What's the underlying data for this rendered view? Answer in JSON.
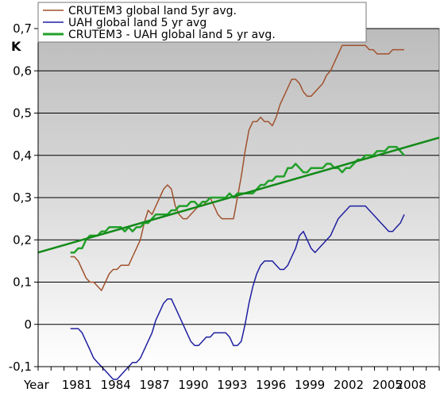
{
  "chart_data": {
    "type": "line",
    "title": "",
    "xlabel": "Year",
    "ylabel": "K",
    "xlim": [
      1978.0,
      2009.0
    ],
    "ylim": [
      -0.1,
      0.7
    ],
    "y_ticks": [
      {
        "value": -0.1,
        "label": "-0,1"
      },
      {
        "value": 0,
        "label": "0"
      },
      {
        "value": 0.1,
        "label": "0,1"
      },
      {
        "value": 0.2,
        "label": "0,2"
      },
      {
        "value": 0.3,
        "label": "0,3"
      },
      {
        "value": 0.4,
        "label": "0,4"
      },
      {
        "value": 0.5,
        "label": "0,5"
      },
      {
        "value": 0.6,
        "label": "0,6"
      },
      {
        "value": 0.7,
        "label": "0,7"
      }
    ],
    "x_tick_labels": [
      {
        "value": 1978.0,
        "label": "Year"
      },
      {
        "value": 1981.0,
        "label": "1981"
      },
      {
        "value": 1984.0,
        "label": "1984"
      },
      {
        "value": 1987.0,
        "label": "1987"
      },
      {
        "value": 1990.0,
        "label": "1990"
      },
      {
        "value": 1993.0,
        "label": "1993"
      },
      {
        "value": 1996.0,
        "label": "1996"
      },
      {
        "value": 1999.0,
        "label": "1999"
      },
      {
        "value": 2002.0,
        "label": "2002"
      },
      {
        "value": 2005.0,
        "label": "2005"
      },
      {
        "value": 2008.0,
        "label": "2008"
      }
    ],
    "grid": true,
    "background": "vertical gradient gray to white",
    "legend_position": "top-left",
    "series": [
      {
        "name": "CRUTEM3 global land 5yr avg.",
        "color": "#a0522d",
        "x": [
          1980.5,
          1980.8,
          1981.1,
          1981.4,
          1981.7,
          1982.0,
          1982.3,
          1982.6,
          1982.9,
          1983.2,
          1983.5,
          1983.8,
          1984.1,
          1984.4,
          1984.7,
          1985.0,
          1985.3,
          1985.6,
          1985.9,
          1986.2,
          1986.5,
          1986.8,
          1987.1,
          1987.4,
          1987.7,
          1988.0,
          1988.3,
          1988.6,
          1988.9,
          1989.2,
          1989.5,
          1989.8,
          1990.1,
          1990.4,
          1990.7,
          1991.0,
          1991.3,
          1991.6,
          1991.9,
          1992.2,
          1992.5,
          1992.8,
          1993.1,
          1993.4,
          1993.7,
          1994.0,
          1994.3,
          1994.6,
          1994.9,
          1995.2,
          1995.5,
          1995.8,
          1996.1,
          1996.4,
          1996.7,
          1997.0,
          1997.3,
          1997.6,
          1997.9,
          1998.2,
          1998.5,
          1998.8,
          1999.1,
          1999.4,
          1999.7,
          2000.0,
          2000.3,
          2000.6,
          2000.9,
          2001.2,
          2001.5,
          2001.8,
          2002.1,
          2002.4,
          2002.7,
          2003.0,
          2003.3,
          2003.6,
          2003.9,
          2004.2,
          2004.5,
          2004.8,
          2005.1,
          2005.4,
          2005.7,
          2006.0,
          2006.3
        ],
        "values": [
          0.16,
          0.16,
          0.15,
          0.13,
          0.11,
          0.1,
          0.1,
          0.09,
          0.08,
          0.1,
          0.12,
          0.13,
          0.13,
          0.14,
          0.14,
          0.14,
          0.16,
          0.18,
          0.2,
          0.24,
          0.27,
          0.26,
          0.28,
          0.3,
          0.32,
          0.33,
          0.32,
          0.28,
          0.26,
          0.25,
          0.25,
          0.26,
          0.27,
          0.28,
          0.28,
          0.29,
          0.3,
          0.28,
          0.26,
          0.25,
          0.25,
          0.25,
          0.25,
          0.3,
          0.35,
          0.41,
          0.46,
          0.48,
          0.48,
          0.49,
          0.48,
          0.48,
          0.47,
          0.49,
          0.52,
          0.54,
          0.56,
          0.58,
          0.58,
          0.57,
          0.55,
          0.54,
          0.54,
          0.55,
          0.56,
          0.57,
          0.59,
          0.6,
          0.62,
          0.64,
          0.66,
          0.66,
          0.66,
          0.66,
          0.66,
          0.66,
          0.66,
          0.65,
          0.65,
          0.64,
          0.64,
          0.64,
          0.64,
          0.65,
          0.65,
          0.65,
          0.65
        ]
      },
      {
        "name": "UAH global land 5 yr avg",
        "color": "#1f1fa0",
        "x": [
          1980.5,
          1980.8,
          1981.1,
          1981.4,
          1981.7,
          1982.0,
          1982.3,
          1982.6,
          1982.9,
          1983.2,
          1983.5,
          1983.8,
          1984.1,
          1984.4,
          1984.7,
          1985.0,
          1985.3,
          1985.6,
          1985.9,
          1986.2,
          1986.5,
          1986.8,
          1987.1,
          1987.4,
          1987.7,
          1988.0,
          1988.3,
          1988.6,
          1988.9,
          1989.2,
          1989.5,
          1989.8,
          1990.1,
          1990.4,
          1990.7,
          1991.0,
          1991.3,
          1991.6,
          1991.9,
          1992.2,
          1992.5,
          1992.8,
          1993.1,
          1993.4,
          1993.7,
          1994.0,
          1994.3,
          1994.6,
          1994.9,
          1995.2,
          1995.5,
          1995.8,
          1996.1,
          1996.4,
          1996.7,
          1997.0,
          1997.3,
          1997.6,
          1997.9,
          1998.2,
          1998.5,
          1998.8,
          1999.1,
          1999.4,
          1999.7,
          2000.0,
          2000.3,
          2000.6,
          2000.9,
          2001.2,
          2001.5,
          2001.8,
          2002.1,
          2002.4,
          2002.7,
          2003.0,
          2003.3,
          2003.6,
          2003.9,
          2004.2,
          2004.5,
          2004.8,
          2005.1,
          2005.4,
          2005.7,
          2006.0,
          2006.3
        ],
        "values": [
          -0.01,
          -0.01,
          -0.01,
          -0.02,
          -0.04,
          -0.06,
          -0.08,
          -0.09,
          -0.1,
          -0.11,
          -0.12,
          -0.13,
          -0.13,
          -0.12,
          -0.11,
          -0.1,
          -0.09,
          -0.09,
          -0.08,
          -0.06,
          -0.04,
          -0.02,
          0.01,
          0.03,
          0.05,
          0.06,
          0.06,
          0.04,
          0.02,
          0.0,
          -0.02,
          -0.04,
          -0.05,
          -0.05,
          -0.04,
          -0.03,
          -0.03,
          -0.02,
          -0.02,
          -0.02,
          -0.02,
          -0.03,
          -0.05,
          -0.05,
          -0.04,
          0.0,
          0.05,
          0.09,
          0.12,
          0.14,
          0.15,
          0.15,
          0.15,
          0.14,
          0.13,
          0.13,
          0.14,
          0.16,
          0.18,
          0.21,
          0.22,
          0.2,
          0.18,
          0.17,
          0.18,
          0.19,
          0.2,
          0.21,
          0.23,
          0.25,
          0.26,
          0.27,
          0.28,
          0.28,
          0.28,
          0.28,
          0.28,
          0.27,
          0.26,
          0.25,
          0.24,
          0.23,
          0.22,
          0.22,
          0.23,
          0.24,
          0.26
        ]
      },
      {
        "name": "CRUTEM3 - UAH global land 5 yr avg.",
        "color": "#22a02a",
        "x": [
          1980.5,
          1980.8,
          1981.1,
          1981.4,
          1981.7,
          1982.0,
          1982.3,
          1982.6,
          1982.9,
          1983.2,
          1983.5,
          1983.8,
          1984.1,
          1984.4,
          1984.7,
          1985.0,
          1985.3,
          1985.6,
          1985.9,
          1986.2,
          1986.5,
          1986.8,
          1987.1,
          1987.4,
          1987.7,
          1988.0,
          1988.3,
          1988.6,
          1988.9,
          1989.2,
          1989.5,
          1989.8,
          1990.1,
          1990.4,
          1990.7,
          1991.0,
          1991.3,
          1991.6,
          1991.9,
          1992.2,
          1992.5,
          1992.8,
          1993.1,
          1993.4,
          1993.7,
          1994.0,
          1994.3,
          1994.6,
          1994.9,
          1995.2,
          1995.5,
          1995.8,
          1996.1,
          1996.4,
          1996.7,
          1997.0,
          1997.3,
          1997.6,
          1997.9,
          1998.2,
          1998.5,
          1998.8,
          1999.1,
          1999.4,
          1999.7,
          2000.0,
          2000.3,
          2000.6,
          2000.9,
          2001.2,
          2001.5,
          2001.8,
          2002.1,
          2002.4,
          2002.7,
          2003.0,
          2003.3,
          2003.6,
          2003.9,
          2004.2,
          2004.5,
          2004.8,
          2005.1,
          2005.4,
          2005.7,
          2006.0,
          2006.3
        ],
        "values": [
          0.17,
          0.17,
          0.18,
          0.18,
          0.2,
          0.21,
          0.21,
          0.21,
          0.22,
          0.22,
          0.23,
          0.23,
          0.23,
          0.23,
          0.22,
          0.23,
          0.22,
          0.23,
          0.23,
          0.24,
          0.24,
          0.25,
          0.26,
          0.26,
          0.26,
          0.26,
          0.27,
          0.27,
          0.28,
          0.28,
          0.28,
          0.29,
          0.29,
          0.28,
          0.29,
          0.29,
          0.3,
          0.3,
          0.3,
          0.3,
          0.3,
          0.31,
          0.3,
          0.31,
          0.31,
          0.31,
          0.31,
          0.31,
          0.32,
          0.33,
          0.33,
          0.34,
          0.34,
          0.35,
          0.35,
          0.35,
          0.37,
          0.37,
          0.38,
          0.37,
          0.36,
          0.36,
          0.37,
          0.37,
          0.37,
          0.37,
          0.38,
          0.38,
          0.37,
          0.37,
          0.36,
          0.37,
          0.37,
          0.38,
          0.39,
          0.39,
          0.4,
          0.4,
          0.4,
          0.41,
          0.41,
          0.41,
          0.42,
          0.42,
          0.42,
          0.41,
          0.4
        ]
      },
      {
        "name": "",
        "color": "#128a18",
        "x": [
          1978.0,
          2009.0
        ],
        "values": [
          0.17,
          0.442
        ]
      }
    ]
  }
}
